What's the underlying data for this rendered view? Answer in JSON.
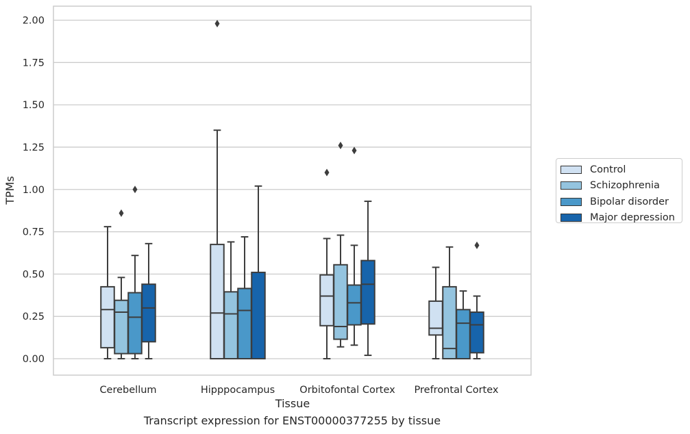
{
  "chart_data": {
    "type": "box",
    "xlabel": "Tissue",
    "ylabel": "TPMs",
    "caption": "Transcript expression for ENST00000377255 by tissue",
    "ylim": [
      -0.1,
      2.08
    ],
    "yticks": [
      "0.00",
      "0.25",
      "0.50",
      "0.75",
      "1.00",
      "1.25",
      "1.50",
      "1.75",
      "2.00"
    ],
    "grid": true,
    "legend_position": "right",
    "categories": [
      "Cerebellum",
      "Hipppocampus",
      "Orbitofontal Cortex",
      "Prefrontal Cortex"
    ],
    "series": [
      {
        "name": "Control",
        "color": "#d0e1f2",
        "boxes": [
          {
            "whislo": 0.0,
            "q1": 0.065,
            "med": 0.29,
            "q3": 0.425,
            "whishi": 0.78,
            "fliers": []
          },
          {
            "whislo": 0.0,
            "q1": 0.0,
            "med": 0.27,
            "q3": 0.675,
            "whishi": 1.35,
            "fliers": [
              1.98
            ]
          },
          {
            "whislo": 0.0,
            "q1": 0.195,
            "med": 0.37,
            "q3": 0.495,
            "whishi": 0.71,
            "fliers": [
              1.1
            ]
          },
          {
            "whislo": 0.0,
            "q1": 0.14,
            "med": 0.18,
            "q3": 0.34,
            "whishi": 0.54,
            "fliers": []
          }
        ]
      },
      {
        "name": "Schizophrenia",
        "color": "#94c4df",
        "boxes": [
          {
            "whislo": 0.0,
            "q1": 0.03,
            "med": 0.275,
            "q3": 0.345,
            "whishi": 0.48,
            "fliers": [
              0.86
            ]
          },
          {
            "whislo": 0.0,
            "q1": 0.0,
            "med": 0.265,
            "q3": 0.395,
            "whishi": 0.69,
            "fliers": []
          },
          {
            "whislo": 0.07,
            "q1": 0.115,
            "med": 0.19,
            "q3": 0.555,
            "whishi": 0.73,
            "fliers": [
              1.26
            ]
          },
          {
            "whislo": 0.0,
            "q1": 0.0,
            "med": 0.06,
            "q3": 0.425,
            "whishi": 0.66,
            "fliers": []
          }
        ]
      },
      {
        "name": "Bipolar disorder",
        "color": "#4a98c9",
        "boxes": [
          {
            "whislo": 0.0,
            "q1": 0.03,
            "med": 0.245,
            "q3": 0.39,
            "whishi": 0.61,
            "fliers": [
              1.0
            ]
          },
          {
            "whislo": 0.0,
            "q1": 0.0,
            "med": 0.285,
            "q3": 0.415,
            "whishi": 0.72,
            "fliers": []
          },
          {
            "whislo": 0.08,
            "q1": 0.2,
            "med": 0.33,
            "q3": 0.435,
            "whishi": 0.67,
            "fliers": [
              1.23
            ]
          },
          {
            "whislo": 0.0,
            "q1": 0.0,
            "med": 0.21,
            "q3": 0.29,
            "whishi": 0.4,
            "fliers": []
          }
        ]
      },
      {
        "name": "Major depression",
        "color": "#1764ab",
        "boxes": [
          {
            "whislo": 0.0,
            "q1": 0.1,
            "med": 0.3,
            "q3": 0.44,
            "whishi": 0.68,
            "fliers": []
          },
          {
            "whislo": 0.0,
            "q1": 0.0,
            "med": 0.0,
            "q3": 0.51,
            "whishi": 1.02,
            "fliers": []
          },
          {
            "whislo": 0.02,
            "q1": 0.205,
            "med": 0.44,
            "q3": 0.58,
            "whishi": 0.93,
            "fliers": []
          },
          {
            "whislo": 0.0,
            "q1": 0.035,
            "med": 0.2,
            "q3": 0.275,
            "whishi": 0.37,
            "fliers": [
              0.67
            ]
          }
        ]
      }
    ]
  }
}
